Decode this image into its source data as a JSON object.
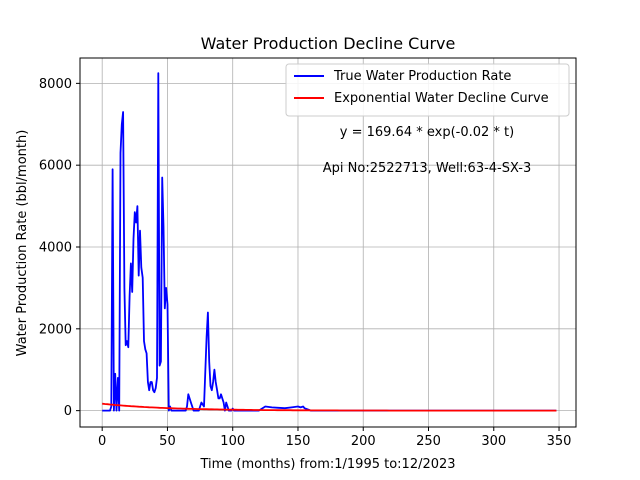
{
  "chart_data": {
    "type": "line",
    "title": "Water Production Decline Curve",
    "xlabel": "Time (months) from:1/1995 to:12/2023",
    "ylabel": "Water Production Rate (bbl/month)",
    "xlim": [
      -17,
      363
    ],
    "ylim": [
      -400,
      8620
    ],
    "x_ticks": [
      0,
      50,
      100,
      150,
      200,
      250,
      300,
      350
    ],
    "y_ticks": [
      0,
      2000,
      4000,
      6000,
      8000
    ],
    "grid": true,
    "legend_position": "top-right",
    "annotations": [
      "y = 169.64 * exp(-0.02 * t)",
      "Api No:2522713, Well:63-4-SX-3"
    ],
    "series": [
      {
        "name": "True Water Production Rate",
        "color": "#0000ff",
        "x": [
          0,
          6,
          7,
          8,
          9,
          10,
          11,
          12,
          13,
          14,
          15,
          16,
          17,
          18,
          19,
          20,
          21,
          22,
          23,
          24,
          25,
          26,
          27,
          28,
          29,
          30,
          31,
          32,
          33,
          34,
          35,
          36,
          37,
          38,
          39,
          40,
          41,
          42,
          43,
          44,
          45,
          46,
          47,
          48,
          49,
          50,
          51,
          52,
          53,
          54,
          55,
          56,
          57,
          58,
          59,
          60,
          62,
          64,
          65,
          66,
          67,
          68,
          70,
          72,
          74,
          76,
          78,
          80,
          81,
          82,
          83,
          84,
          85,
          86,
          87,
          88,
          89,
          90,
          91,
          92,
          93,
          94,
          95,
          96,
          97,
          98,
          99,
          100,
          101,
          102,
          103,
          104,
          105,
          110,
          115,
          120,
          125,
          130,
          135,
          140,
          145,
          150,
          152,
          154,
          155,
          160,
          170,
          200,
          250,
          300,
          330,
          335,
          337,
          340,
          348
        ],
        "y": [
          0,
          0,
          100,
          5900,
          0,
          900,
          0,
          800,
          0,
          6300,
          7000,
          7300,
          3000,
          1600,
          1700,
          1550,
          2800,
          3600,
          2900,
          4200,
          4850,
          4600,
          5000,
          3300,
          4400,
          3500,
          3250,
          1700,
          1500,
          1400,
          700,
          500,
          700,
          700,
          500,
          450,
          550,
          800,
          8250,
          1100,
          1200,
          5700,
          4500,
          2500,
          3000,
          2600,
          0,
          100,
          0,
          0,
          0,
          0,
          0,
          0,
          0,
          0,
          0,
          0,
          100,
          400,
          300,
          200,
          0,
          0,
          0,
          200,
          100,
          1800,
          2400,
          1200,
          600,
          500,
          700,
          1000,
          700,
          500,
          300,
          300,
          400,
          300,
          200,
          0,
          200,
          100,
          0,
          0,
          0,
          50,
          0,
          0,
          0,
          0,
          0,
          0,
          0,
          0,
          100,
          80,
          70,
          60,
          80,
          100,
          80,
          100,
          60,
          0,
          0,
          0,
          0,
          0,
          0,
          0,
          0,
          0,
          0
        ]
      },
      {
        "name": "Exponential Water Decline Curve",
        "color": "#ff0000",
        "formula": {
          "a": 169.64,
          "b": -0.02
        },
        "x_range": [
          0,
          348
        ]
      }
    ]
  }
}
